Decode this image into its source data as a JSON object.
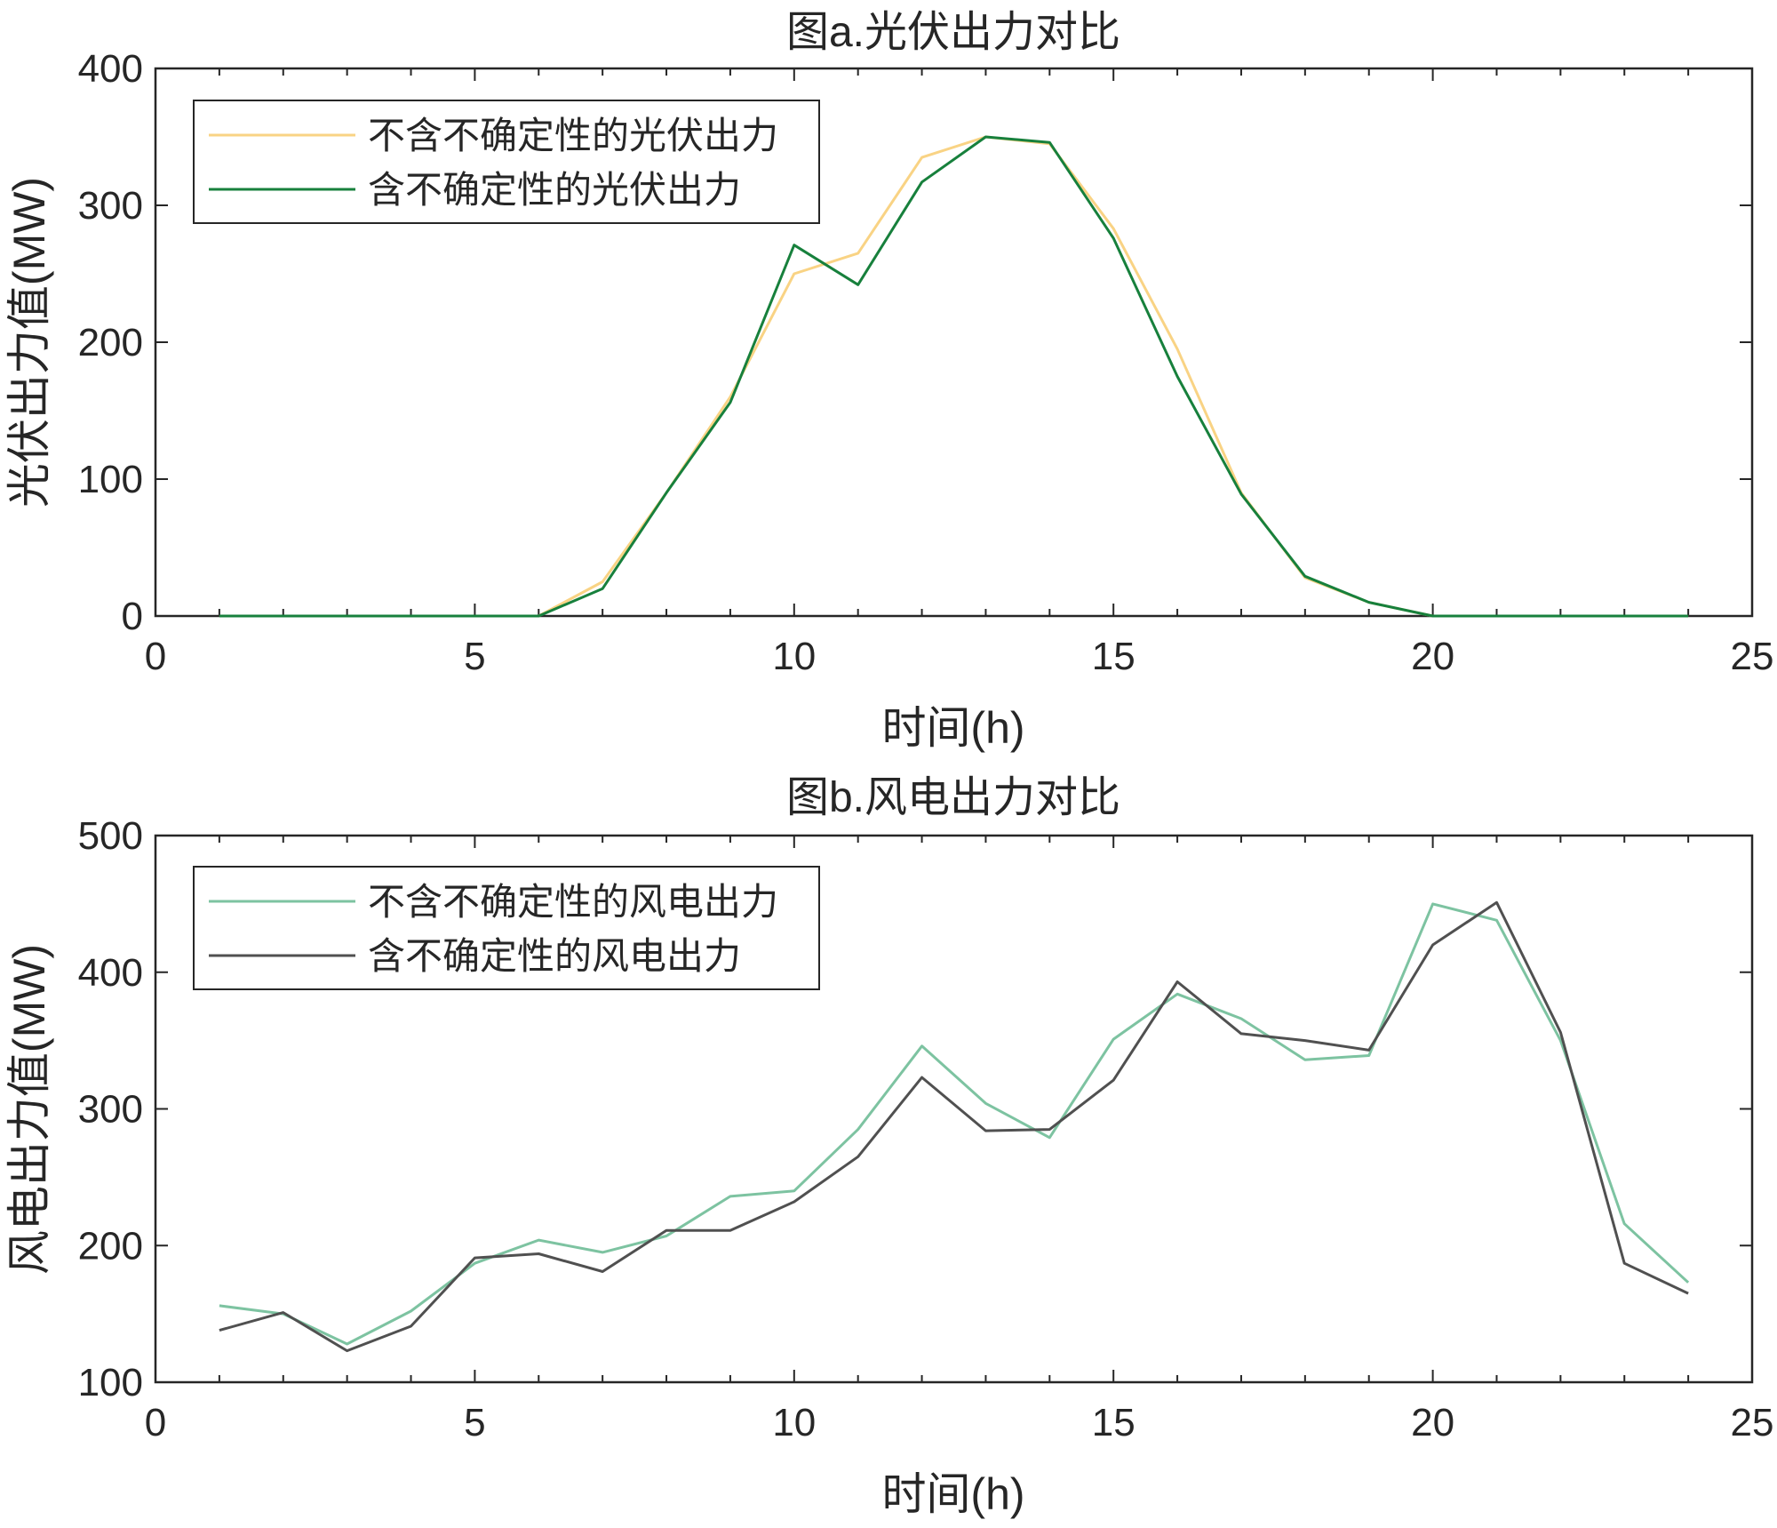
{
  "chart_data": [
    {
      "type": "line",
      "title": "图a.光伏出力对比",
      "xlabel": "时间(h)",
      "ylabel": "光伏出力值(MW)",
      "xlim": [
        0,
        25
      ],
      "ylim": [
        0,
        400
      ],
      "xticks": [
        "0",
        "5",
        "10",
        "15",
        "20",
        "25"
      ],
      "yticks": [
        "0",
        "100",
        "200",
        "300",
        "400"
      ],
      "grid": false,
      "legend": "top-left",
      "x": [
        1,
        2,
        3,
        4,
        5,
        6,
        7,
        8,
        9,
        10,
        11,
        12,
        13,
        14,
        15,
        16,
        17,
        18,
        19,
        20,
        21,
        22,
        23,
        24
      ],
      "series": [
        {
          "name": "不含不确定性的光伏出力",
          "color": "#F9D384",
          "values": [
            0,
            0,
            0,
            0,
            0,
            0,
            25,
            90,
            160,
            250,
            265,
            335,
            350,
            345,
            283,
            195,
            90,
            28,
            10,
            0,
            0,
            0,
            0,
            0
          ]
        },
        {
          "name": "含不确定性的光伏出力",
          "color": "#17803C",
          "values": [
            0,
            0,
            0,
            0,
            0,
            0,
            20,
            90,
            156,
            271,
            242,
            317,
            350,
            346,
            276,
            175,
            89,
            29,
            10,
            0,
            0,
            0,
            0,
            0
          ]
        }
      ]
    },
    {
      "type": "line",
      "title": "图b.风电出力对比",
      "xlabel": "时间(h)",
      "ylabel": "风电出力值(MW)",
      "xlim": [
        0,
        25
      ],
      "ylim": [
        100,
        500
      ],
      "xticks": [
        "0",
        "5",
        "10",
        "15",
        "20",
        "25"
      ],
      "yticks": [
        "100",
        "200",
        "300",
        "400",
        "500"
      ],
      "grid": false,
      "legend": "top-left",
      "x": [
        1,
        2,
        3,
        4,
        5,
        6,
        7,
        8,
        9,
        10,
        11,
        12,
        13,
        14,
        15,
        16,
        17,
        18,
        19,
        20,
        21,
        22,
        23,
        24
      ],
      "series": [
        {
          "name": "不含不确定性的风电出力",
          "color": "#7DC3A1",
          "values": [
            156,
            150,
            128,
            152,
            187,
            204,
            195,
            207,
            236,
            240,
            285,
            346,
            304,
            279,
            351,
            384,
            366,
            336,
            339,
            450,
            438,
            350,
            216,
            173
          ]
        },
        {
          "name": "含不确定性的风电出力",
          "color": "#505050",
          "values": [
            138,
            151,
            123,
            141,
            191,
            194,
            181,
            211,
            211,
            232,
            265,
            323,
            284,
            285,
            321,
            393,
            355,
            350,
            343,
            420,
            451,
            356,
            187,
            165
          ]
        }
      ]
    }
  ]
}
